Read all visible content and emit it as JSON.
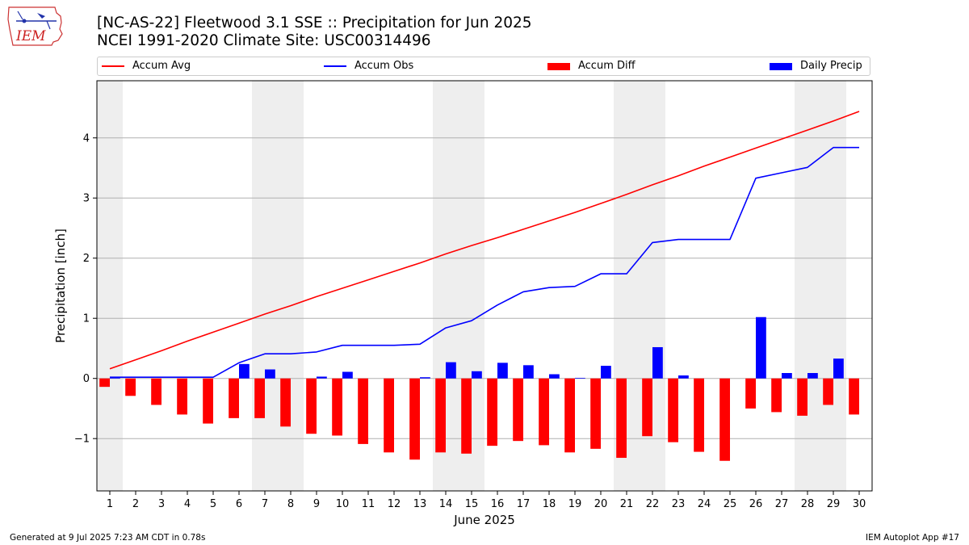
{
  "header": {
    "title_line1": "[NC-AS-22] Fleetwood 3.1 SSE :: Precipitation for Jun 2025",
    "title_line2": "NCEI 1991-2020 Climate Site: USC00314496",
    "logo_text": "IEM"
  },
  "footer": {
    "left": "Generated at 9 Jul 2025 7:23 AM CDT in 0.78s",
    "right": "IEM Autoplot App #17"
  },
  "colors": {
    "accum_avg": "#ff0000",
    "accum_obs": "#0000ff",
    "accum_diff": "#ff0000",
    "daily_precip": "#0000ff",
    "weekend_shade": "#eeeeee",
    "grid": "#b0b0b0"
  },
  "chart_data": {
    "type": "bar",
    "xlabel": "June 2025",
    "ylabel": "Precipitation [inch]",
    "ylim": [
      -1.87,
      4.95
    ],
    "yticks": [
      -1,
      0,
      1,
      2,
      3,
      4
    ],
    "ytick_labels": [
      "−1",
      "0",
      "1",
      "2",
      "3",
      "4"
    ],
    "grid": "horizontal",
    "legend_position": "top",
    "shaded_days": [
      1,
      7,
      8,
      14,
      15,
      21,
      22,
      28,
      29
    ],
    "days": [
      1,
      2,
      3,
      4,
      5,
      6,
      7,
      8,
      9,
      10,
      11,
      12,
      13,
      14,
      15,
      16,
      17,
      18,
      19,
      20,
      21,
      22,
      23,
      24,
      25,
      26,
      27,
      28,
      29,
      30
    ],
    "series": [
      {
        "name": "Accum Avg",
        "type": "line",
        "values": [
          0.16,
          0.31,
          0.46,
          0.62,
          0.77,
          0.92,
          1.07,
          1.21,
          1.36,
          1.5,
          1.64,
          1.78,
          1.92,
          2.07,
          2.21,
          2.34,
          2.48,
          2.62,
          2.76,
          2.91,
          3.06,
          3.22,
          3.37,
          3.53,
          3.68,
          3.83,
          3.98,
          4.13,
          4.28,
          4.44
        ]
      },
      {
        "name": "Accum Obs",
        "type": "line",
        "values": [
          0.02,
          0.02,
          0.02,
          0.02,
          0.02,
          0.26,
          0.41,
          0.41,
          0.44,
          0.55,
          0.55,
          0.55,
          0.57,
          0.84,
          0.96,
          1.22,
          1.44,
          1.51,
          1.53,
          1.74,
          1.74,
          2.26,
          2.31,
          2.31,
          2.31,
          3.33,
          3.42,
          3.51,
          3.84,
          3.84
        ]
      },
      {
        "name": "Accum Diff",
        "type": "bar",
        "values": [
          -0.14,
          -0.29,
          -0.44,
          -0.6,
          -0.75,
          -0.66,
          -0.66,
          -0.8,
          -0.92,
          -0.95,
          -1.09,
          -1.23,
          -1.35,
          -1.23,
          -1.25,
          -1.12,
          -1.04,
          -1.11,
          -1.23,
          -1.17,
          -1.32,
          -0.96,
          -1.06,
          -1.22,
          -1.37,
          -0.5,
          -0.56,
          -0.62,
          -0.44,
          -0.6
        ]
      },
      {
        "name": "Daily Precip",
        "type": "bar",
        "values": [
          0.02,
          0.0,
          0.0,
          0.0,
          0.0,
          0.24,
          0.15,
          0.0,
          0.03,
          0.11,
          0.0,
          0.0,
          0.02,
          0.27,
          0.12,
          0.26,
          0.22,
          0.07,
          0.01,
          0.21,
          0.0,
          0.52,
          0.05,
          0.0,
          0.0,
          1.02,
          0.09,
          0.09,
          0.33,
          0.0
        ]
      }
    ]
  }
}
